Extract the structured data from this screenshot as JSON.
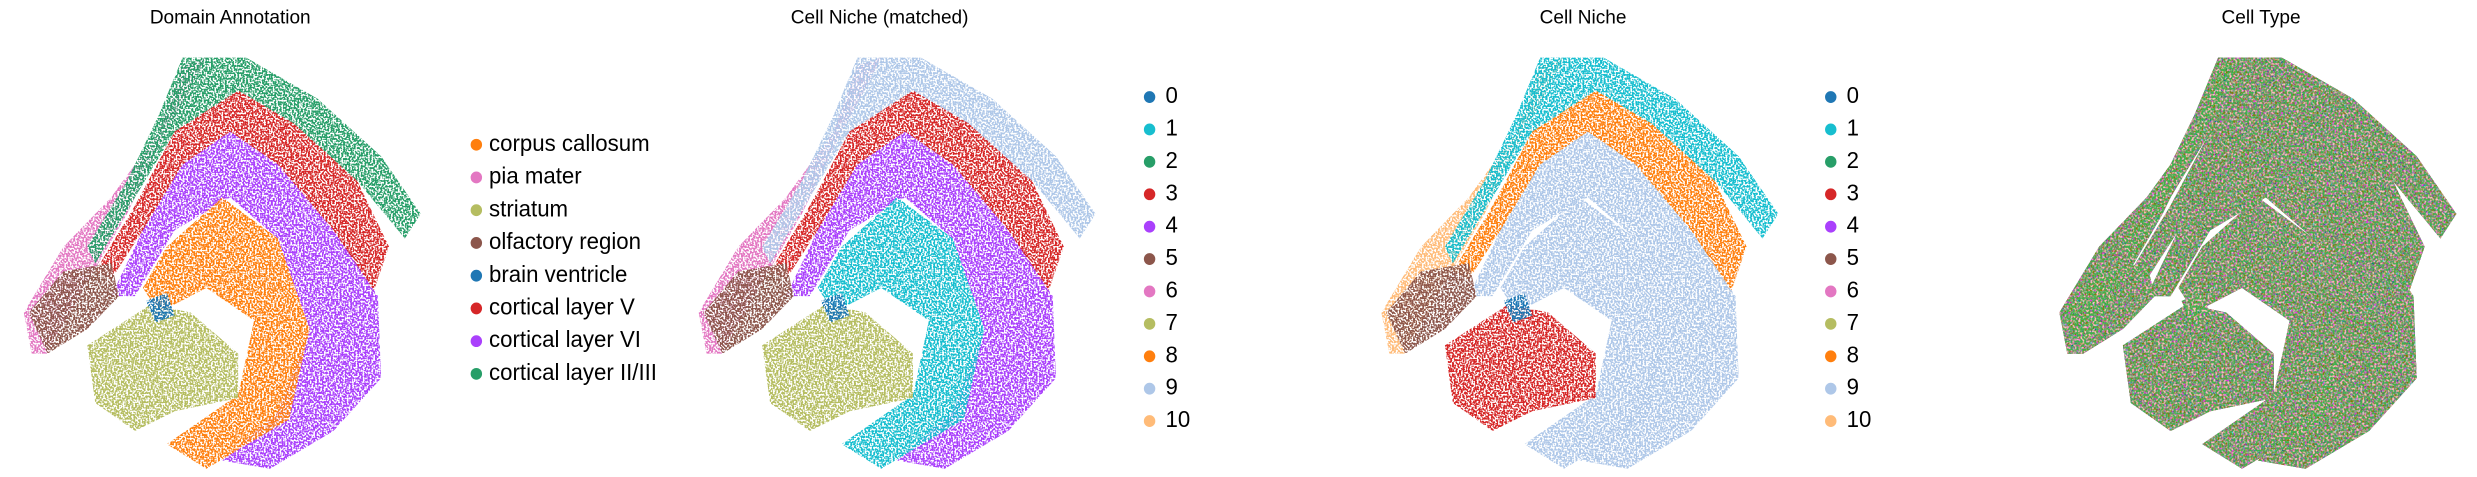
{
  "chart_data": [
    {
      "type": "spatial-scatter",
      "title": "Domain Annotation",
      "series": [
        {
          "name": "corpus callosum",
          "color": "#ff7f0e"
        },
        {
          "name": "pia mater",
          "color": "#e377c2"
        },
        {
          "name": "striatum",
          "color": "#b5bd61"
        },
        {
          "name": "olfactory region",
          "color": "#8c564b"
        },
        {
          "name": "brain ventricle",
          "color": "#1f77b4"
        },
        {
          "name": "cortical layer V",
          "color": "#d62728"
        },
        {
          "name": "cortical layer VI",
          "color": "#aa40fc"
        },
        {
          "name": "cortical layer II/III",
          "color": "#279e68"
        }
      ]
    },
    {
      "type": "spatial-scatter",
      "title": "Cell Niche (matched)",
      "series": [
        {
          "name": "0",
          "color": "#1f77b4"
        },
        {
          "name": "1",
          "color": "#17becf"
        },
        {
          "name": "2",
          "color": "#279e68"
        },
        {
          "name": "3",
          "color": "#d62728"
        },
        {
          "name": "4",
          "color": "#aa40fc"
        },
        {
          "name": "5",
          "color": "#8c564b"
        },
        {
          "name": "6",
          "color": "#e377c2"
        },
        {
          "name": "7",
          "color": "#b5bd61"
        },
        {
          "name": "8",
          "color": "#ff7f0e"
        },
        {
          "name": "9",
          "color": "#aec7e8"
        },
        {
          "name": "10",
          "color": "#ffbb78"
        }
      ]
    },
    {
      "type": "spatial-scatter",
      "title": "Cell Niche",
      "series": [
        {
          "name": "0",
          "color": "#1f77b4"
        },
        {
          "name": "1",
          "color": "#17becf"
        },
        {
          "name": "2",
          "color": "#279e68"
        },
        {
          "name": "3",
          "color": "#d62728"
        },
        {
          "name": "4",
          "color": "#aa40fc"
        },
        {
          "name": "5",
          "color": "#8c564b"
        },
        {
          "name": "6",
          "color": "#e377c2"
        },
        {
          "name": "7",
          "color": "#b5bd61"
        },
        {
          "name": "8",
          "color": "#ff7f0e"
        },
        {
          "name": "9",
          "color": "#aec7e8"
        },
        {
          "name": "10",
          "color": "#ffbb78"
        }
      ]
    },
    {
      "type": "spatial-scatter",
      "title": "Cell Type",
      "colors": [
        "#aaffc3",
        "#000080",
        "#ffe119",
        "#e6194b",
        "#f58231",
        "#911eb4",
        "#46f0f0",
        "#008080",
        "#f032e6",
        "#808000",
        "#fabebe",
        "#3cb44b"
      ]
    }
  ]
}
